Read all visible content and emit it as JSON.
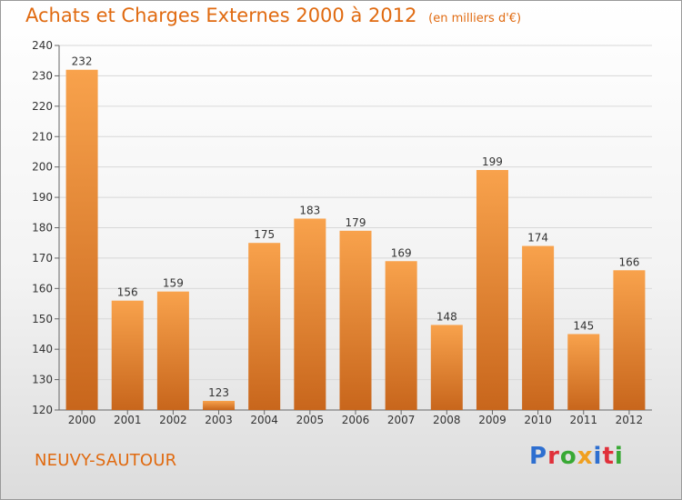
{
  "header": {
    "title": "Achats et Charges Externes 2000 à 2012",
    "subtitle": "(en milliers d'€)"
  },
  "footer": {
    "commune": "NEUVY-SAUTOUR",
    "logo": "Proxiti"
  },
  "colors": {
    "title": "#e06a10",
    "bar_light": "#f8a24c",
    "bar_dark": "#c8661c",
    "grid": "#d8d8d8"
  },
  "chart_data": {
    "type": "bar",
    "categories": [
      "2000",
      "2001",
      "2002",
      "2003",
      "2004",
      "2005",
      "2006",
      "2007",
      "2008",
      "2009",
      "2010",
      "2011",
      "2012"
    ],
    "values": [
      232,
      156,
      159,
      123,
      175,
      183,
      179,
      169,
      148,
      199,
      174,
      145,
      166
    ],
    "ylim": [
      120,
      240
    ],
    "yticks": [
      120,
      130,
      140,
      150,
      160,
      170,
      180,
      190,
      200,
      210,
      220,
      230,
      240
    ],
    "grid": true,
    "data_labels": true,
    "title": "Achats et Charges Externes 2000 à 2012",
    "xlabel": "",
    "ylabel": ""
  }
}
